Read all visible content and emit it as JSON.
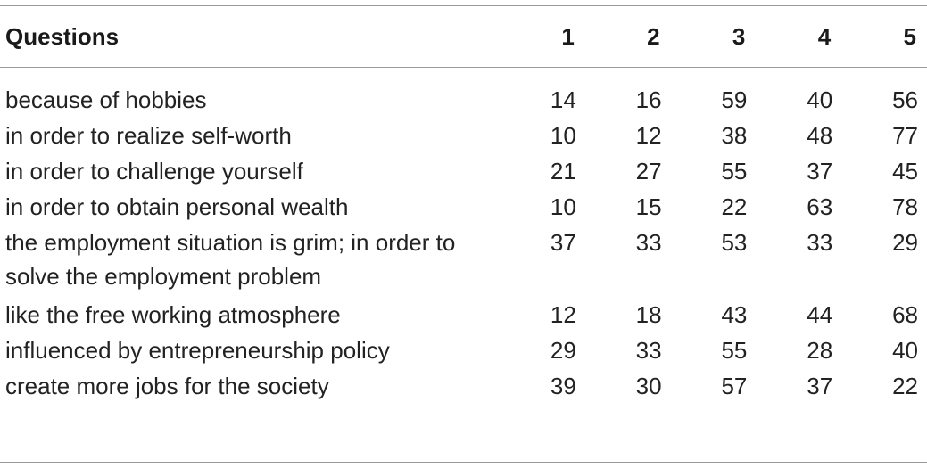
{
  "table": {
    "headers": [
      "Questions",
      "1",
      "2",
      "3",
      "4",
      "5"
    ],
    "rows": [
      {
        "question": "because of hobbies",
        "values": [
          "14",
          "16",
          "59",
          "40",
          "56"
        ]
      },
      {
        "question": "in order to realize self-worth",
        "values": [
          "10",
          "12",
          "38",
          "48",
          "77"
        ]
      },
      {
        "question": "in order to challenge yourself",
        "values": [
          "21",
          "27",
          "55",
          "37",
          "45"
        ]
      },
      {
        "question": "in order to obtain personal wealth",
        "values": [
          "10",
          "15",
          "22",
          "63",
          "78"
        ]
      },
      {
        "question": "the employment situation is grim; in order to solve the employment problem",
        "values": [
          "37",
          "33",
          "53",
          "33",
          "29"
        ]
      },
      {
        "question": "like the free working atmosphere",
        "values": [
          "12",
          "18",
          "43",
          "44",
          "68"
        ]
      },
      {
        "question": "influenced by entrepreneurship policy",
        "values": [
          "29",
          "33",
          "55",
          "28",
          "40"
        ]
      },
      {
        "question": "create more jobs for the society",
        "values": [
          "39",
          "30",
          "57",
          "37",
          "22"
        ]
      }
    ]
  }
}
